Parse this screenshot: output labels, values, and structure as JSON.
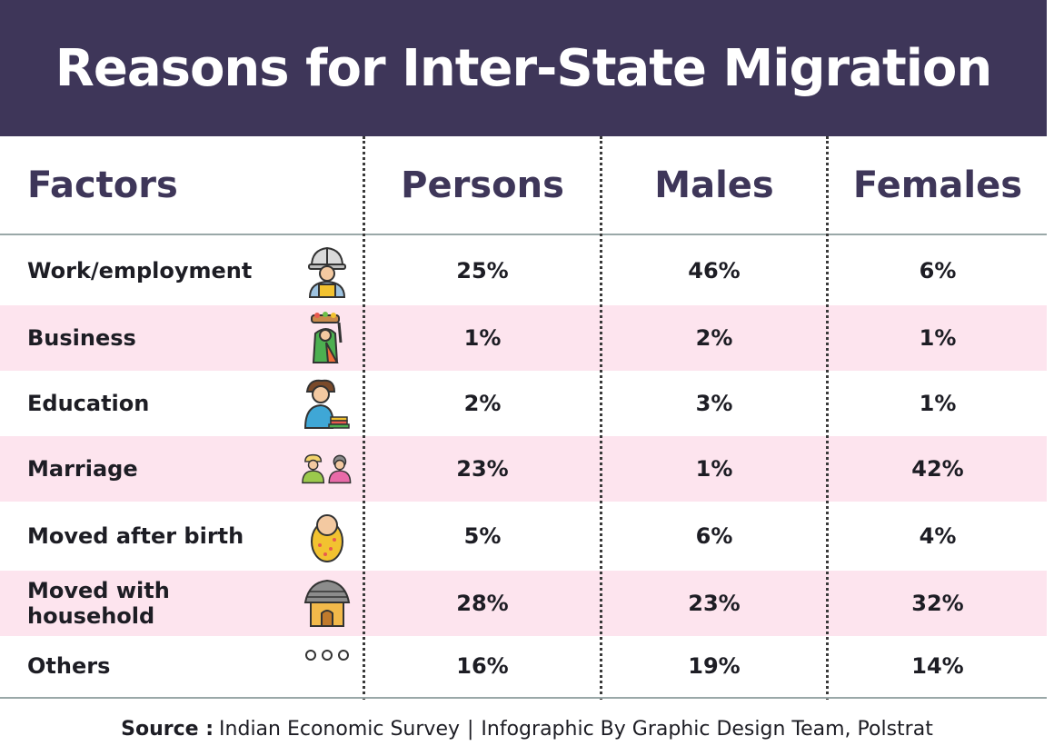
{
  "title": "Reasons for Inter-State Migration",
  "headers": {
    "factors": "Factors",
    "persons": "Persons",
    "males": "Males",
    "females": "Females"
  },
  "rows": [
    {
      "factor": "Work/employment",
      "persons": "25%",
      "males": "46%",
      "females": "6%",
      "icon": "construction-worker-icon"
    },
    {
      "factor": "Business",
      "persons": "1%",
      "males": "2%",
      "females": "1%",
      "icon": "vendor-woman-icon"
    },
    {
      "factor": "Education",
      "persons": "2%",
      "males": "3%",
      "females": "1%",
      "icon": "student-icon"
    },
    {
      "factor": "Marriage",
      "persons": "23%",
      "males": "1%",
      "females": "42%",
      "icon": "couple-icon"
    },
    {
      "factor": "Moved after birth",
      "persons": "5%",
      "males": "6%",
      "females": "4%",
      "icon": "baby-icon"
    },
    {
      "factor": "Moved with household",
      "persons": "28%",
      "males": "23%",
      "females": "32%",
      "icon": "hut-icon"
    },
    {
      "factor": "Others",
      "persons": "16%",
      "males": "19%",
      "females": "14%",
      "icon": "more-dots-icon"
    }
  ],
  "footer": {
    "source_label": "Source :",
    "source_value": "Indian Economic Survey",
    "separator": "|",
    "credit": "Infographic By Graphic Design Team, Polstrat"
  },
  "colors": {
    "banner": "#3e3659",
    "header_text": "#3e3659",
    "pink_row": "#fde4ee"
  },
  "chart_data": {
    "type": "table",
    "title": "Reasons for Inter-State Migration",
    "columns": [
      "Factors",
      "Persons",
      "Males",
      "Females"
    ],
    "categories": [
      "Work/employment",
      "Business",
      "Education",
      "Marriage",
      "Moved after birth",
      "Moved with household",
      "Others"
    ],
    "series": [
      {
        "name": "Persons",
        "values": [
          25,
          1,
          2,
          23,
          5,
          28,
          16
        ]
      },
      {
        "name": "Males",
        "values": [
          46,
          2,
          3,
          1,
          6,
          23,
          19
        ]
      },
      {
        "name": "Females",
        "values": [
          6,
          1,
          1,
          42,
          4,
          32,
          14
        ]
      }
    ]
  }
}
